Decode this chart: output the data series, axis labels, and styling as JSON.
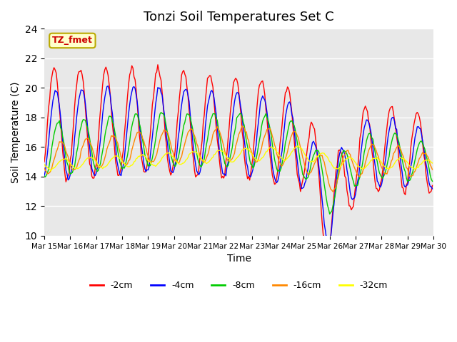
{
  "title": "Tonzi Soil Temperatures Set C",
  "xlabel": "Time",
  "ylabel": "Soil Temperature (C)",
  "ylim": [
    10,
    24
  ],
  "yticks": [
    10,
    12,
    14,
    16,
    18,
    20,
    22,
    24
  ],
  "bg_color": "#e8e8e8",
  "annotation_text": "TZ_fmet",
  "annotation_bg": "#ffffcc",
  "annotation_border": "#bbaa00",
  "series_colors": [
    "#ff0000",
    "#0000ff",
    "#00cc00",
    "#ff8800",
    "#ffff00"
  ],
  "series_labels": [
    "-2cm",
    "-4cm",
    "-8cm",
    "-16cm",
    "-32cm"
  ],
  "x_tick_labels": [
    "Mar 15",
    "Mar 16",
    "Mar 17",
    "Mar 18",
    "Mar 19",
    "Mar 20",
    "Mar 21",
    "Mar 22",
    "Mar 23",
    "Mar 24",
    "Mar 25",
    "Mar 26",
    "Mar 27",
    "Mar 28",
    "Mar 29",
    "Mar 30"
  ],
  "n_days": 15,
  "pts_per_day": 24
}
